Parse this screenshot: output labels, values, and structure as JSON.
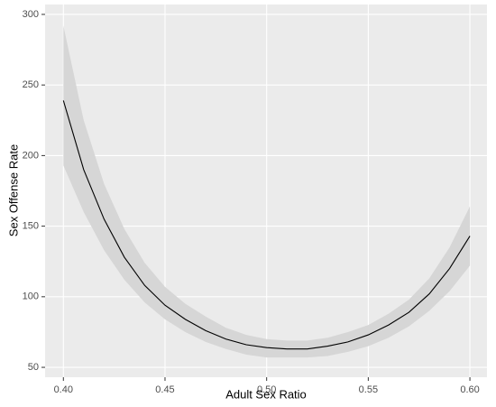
{
  "chart_data": {
    "type": "line",
    "x_label": "Adult Sex Ratio",
    "y_label": "Sex Offense Rate",
    "x": [
      0.4,
      0.41,
      0.42,
      0.43,
      0.44,
      0.45,
      0.46,
      0.47,
      0.48,
      0.49,
      0.5,
      0.51,
      0.52,
      0.53,
      0.54,
      0.55,
      0.56,
      0.57,
      0.58,
      0.59,
      0.6
    ],
    "values": [
      239,
      190,
      155,
      128,
      108,
      94,
      84,
      76,
      70,
      66,
      64,
      63,
      63,
      65,
      68,
      73,
      80,
      89,
      102,
      120,
      143
    ],
    "upper": [
      292,
      225,
      180,
      148,
      124,
      107,
      95,
      86,
      78,
      73,
      70,
      69,
      69,
      71,
      75,
      80,
      88,
      98,
      113,
      135,
      164
    ],
    "lower": [
      193,
      160,
      133,
      112,
      96,
      84,
      75,
      68,
      63,
      59,
      57,
      57,
      57,
      58,
      61,
      65,
      71,
      79,
      90,
      104,
      122
    ],
    "color": "#000000",
    "band_color": "#d6d6d6",
    "xlim": [
      0.391,
      0.6084
    ],
    "ylim": [
      43,
      307
    ],
    "xticks": [
      {
        "value": 0.4,
        "label": "0.40"
      },
      {
        "value": 0.45,
        "label": "0.45"
      },
      {
        "value": 0.5,
        "label": "0.50"
      },
      {
        "value": 0.55,
        "label": "0.55"
      },
      {
        "value": 0.6,
        "label": "0.60"
      }
    ],
    "yticks": [
      50,
      100,
      150,
      200,
      250,
      300
    ],
    "grid": true
  }
}
